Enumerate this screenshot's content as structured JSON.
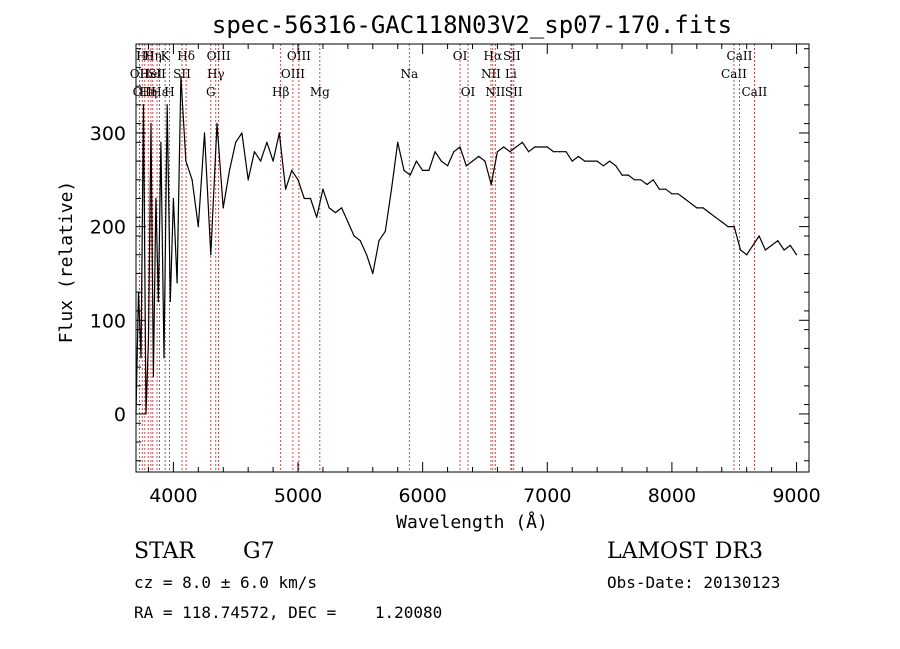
{
  "chart_data": {
    "type": "line",
    "title": "spec-56316-GAC118N03V2_sp07-170.fits",
    "xlabel": "Wavelength (Å)",
    "ylabel": "Flux (relative)",
    "xlim": [
      3700,
      9100
    ],
    "ylim": [
      -62,
      395
    ],
    "xticks": [
      4000,
      5000,
      6000,
      7000,
      8000,
      9000
    ],
    "xtick_labels": [
      "4000",
      "5000",
      "6000",
      "7000",
      "8000",
      "9000"
    ],
    "yticks": [
      0,
      100,
      200,
      300
    ],
    "ytick_labels": [
      "0",
      "100",
      "200",
      "300"
    ],
    "grid": false,
    "series": [
      {
        "name": "spectrum",
        "x": [
          3700,
          3720,
          3740,
          3760,
          3780,
          3800,
          3820,
          3840,
          3860,
          3880,
          3900,
          3925,
          3950,
          3975,
          4000,
          4030,
          4060,
          4100,
          4150,
          4200,
          4250,
          4300,
          4350,
          4400,
          4450,
          4500,
          4550,
          4600,
          4650,
          4700,
          4750,
          4800,
          4850,
          4900,
          4950,
          5000,
          5050,
          5100,
          5150,
          5200,
          5250,
          5300,
          5350,
          5400,
          5450,
          5500,
          5550,
          5600,
          5650,
          5700,
          5750,
          5800,
          5850,
          5900,
          5950,
          6000,
          6050,
          6100,
          6150,
          6200,
          6250,
          6300,
          6350,
          6400,
          6450,
          6500,
          6550,
          6600,
          6650,
          6700,
          6750,
          6800,
          6850,
          6900,
          6950,
          7000,
          7050,
          7100,
          7150,
          7200,
          7250,
          7300,
          7350,
          7400,
          7450,
          7500,
          7550,
          7600,
          7650,
          7700,
          7750,
          7800,
          7850,
          7900,
          7950,
          8000,
          8050,
          8100,
          8150,
          8200,
          8250,
          8300,
          8350,
          8400,
          8450,
          8500,
          8550,
          8600,
          8650,
          8700,
          8750,
          8800,
          8850,
          8900,
          8950,
          9000
        ],
        "y": [
          0,
          130,
          60,
          330,
          0,
          80,
          310,
          40,
          230,
          120,
          290,
          60,
          330,
          120,
          230,
          140,
          360,
          270,
          250,
          200,
          300,
          170,
          310,
          220,
          260,
          290,
          300,
          250,
          280,
          270,
          290,
          270,
          300,
          240,
          260,
          250,
          230,
          230,
          210,
          240,
          220,
          215,
          220,
          205,
          190,
          185,
          170,
          150,
          185,
          195,
          240,
          290,
          260,
          255,
          270,
          260,
          260,
          280,
          270,
          265,
          280,
          285,
          265,
          270,
          275,
          270,
          245,
          280,
          285,
          280,
          285,
          290,
          280,
          285,
          285,
          285,
          280,
          280,
          280,
          270,
          275,
          270,
          270,
          270,
          265,
          270,
          265,
          255,
          255,
          250,
          250,
          245,
          250,
          240,
          240,
          235,
          235,
          230,
          225,
          220,
          220,
          215,
          210,
          205,
          200,
          200,
          175,
          170,
          180,
          190,
          175,
          180,
          185,
          175,
          180,
          170
        ]
      }
    ],
    "spectral_lines": [
      {
        "wavelength": 3727,
        "label": "OII",
        "row": 1
      },
      {
        "wavelength": 3750,
        "label": "OII",
        "row": 2
      },
      {
        "wavelength": 3771,
        "label": "Hθ",
        "row": 0
      },
      {
        "wavelength": 3798,
        "label": "Hη",
        "row": 2
      },
      {
        "wavelength": 3820,
        "label": "HeI",
        "row": 1
      },
      {
        "wavelength": 3835,
        "label": "Hη",
        "row": 0
      },
      {
        "wavelength": 3869,
        "label": "SII",
        "row": 1
      },
      {
        "wavelength": 3889,
        "label": "Hε",
        "row": 2
      },
      {
        "wavelength": 3934,
        "label": "K",
        "row": 0
      },
      {
        "wavelength": 3969,
        "label": "H",
        "row": 2
      },
      {
        "wavelength": 4069,
        "label": "SII",
        "row": 1
      },
      {
        "wavelength": 4102,
        "label": "Hδ",
        "row": 0
      },
      {
        "wavelength": 4300,
        "label": "G",
        "row": 2
      },
      {
        "wavelength": 4340,
        "label": "Hγ",
        "row": 1
      },
      {
        "wavelength": 4363,
        "label": "OIII",
        "row": 0
      },
      {
        "wavelength": 4861,
        "label": "Hβ",
        "row": 2
      },
      {
        "wavelength": 4959,
        "label": "OIII",
        "row": 1
      },
      {
        "wavelength": 5007,
        "label": "OIII",
        "row": 0
      },
      {
        "wavelength": 5175,
        "label": "Mg",
        "row": 2
      },
      {
        "wavelength": 5893,
        "label": "Na",
        "row": 1
      },
      {
        "wavelength": 6300,
        "label": "OI",
        "row": 0
      },
      {
        "wavelength": 6364,
        "label": "OI",
        "row": 2
      },
      {
        "wavelength": 6548,
        "label": "NII",
        "row": 1
      },
      {
        "wavelength": 6563,
        "label": "Hα",
        "row": 0
      },
      {
        "wavelength": 6583,
        "label": "NII",
        "row": 2
      },
      {
        "wavelength": 6708,
        "label": "Li",
        "row": 1
      },
      {
        "wavelength": 6716,
        "label": "SII",
        "row": 0
      },
      {
        "wavelength": 6731,
        "label": "SII",
        "row": 2
      },
      {
        "wavelength": 8498,
        "label": "CaII",
        "row": 1
      },
      {
        "wavelength": 8542,
        "label": "CaII",
        "row": 0
      },
      {
        "wavelength": 8662,
        "label": "CaII",
        "row": 2
      }
    ]
  },
  "info": {
    "object_class": "STAR",
    "subclass": "G7",
    "survey": "LAMOST DR3",
    "redshift": "cz = 8.0 ± 6.0 km/s",
    "obs_date": "Obs-Date: 20130123",
    "coords": "RA = 118.74572, DEC =    1.20080"
  },
  "colors": {
    "line": "#000000",
    "marker": "#b22222",
    "background": "#ffffff"
  }
}
